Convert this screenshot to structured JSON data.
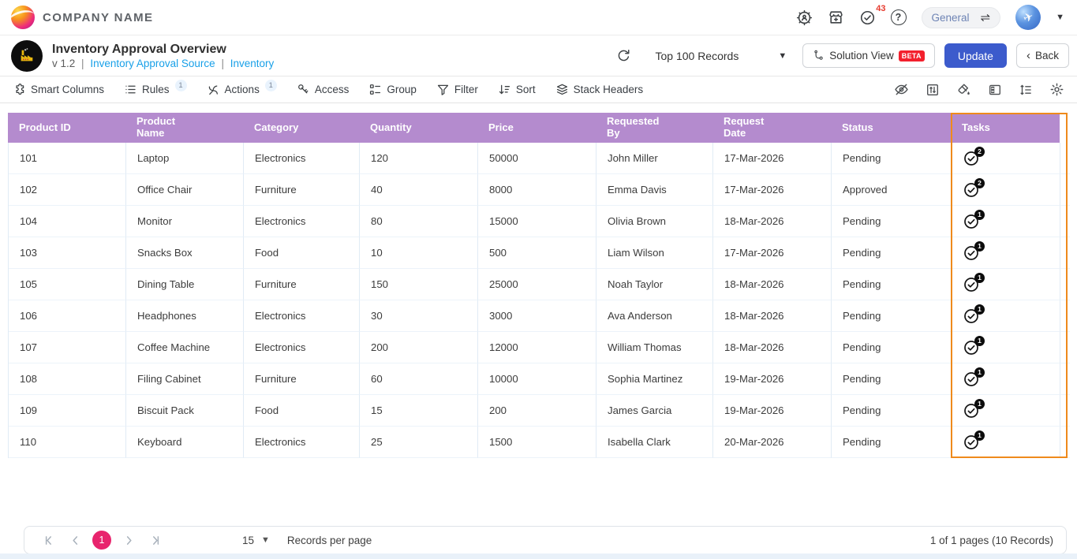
{
  "topbar": {
    "brand": "COMPANY NAME",
    "tasks_count": "43",
    "help_glyph": "?",
    "workspace_label": "General",
    "icons": [
      "admin-settings-icon",
      "marketplace-icon",
      "approvals-icon",
      "help-icon",
      "swap-environment-icon",
      "avatar",
      "caret-down-icon"
    ]
  },
  "view_header": {
    "title": "Inventory Approval Overview",
    "version": "v 1.2",
    "separator": "|",
    "source_link": "Inventory Approval Source",
    "app_link": "Inventory",
    "records_filter": "Top 100 Records",
    "solution_view_label": "Solution View",
    "beta_label": "BETA",
    "update_label": "Update",
    "back_label": "Back",
    "back_chevron": "‹",
    "accent_color": "#3c5bcc",
    "link_color": "#18a0e8"
  },
  "toolbar": {
    "items": [
      {
        "label": "Smart Columns",
        "icon": "puzzle-icon"
      },
      {
        "label": "Rules",
        "badge": "1",
        "icon": "list-icon"
      },
      {
        "label": "Actions",
        "badge": "1",
        "icon": "snap-icon"
      },
      {
        "label": "Access",
        "icon": "key-icon"
      },
      {
        "label": "Group",
        "icon": "group-icon"
      },
      {
        "label": "Filter",
        "icon": "funnel-icon"
      },
      {
        "label": "Sort",
        "icon": "sort-icon"
      },
      {
        "label": "Stack Headers",
        "icon": "layers-icon"
      }
    ],
    "right_icons": [
      "hide-fields-icon",
      "fit-rows-icon",
      "fill-color-icon",
      "freeze-panel-icon",
      "row-height-icon",
      "settings-icon"
    ]
  },
  "table": {
    "header_bg": "#b48bce",
    "highlight_border": "#ef8a1c",
    "columns": [
      "Product ID",
      "Product Name",
      "Category",
      "Quantity",
      "Price",
      "Requested By",
      "Request Date",
      "Status",
      "Tasks"
    ],
    "rows": [
      [
        "101",
        "Laptop",
        "Electronics",
        "120",
        "50000",
        "John Miller",
        "17-Mar-2026",
        "Pending",
        "2"
      ],
      [
        "102",
        "Office Chair",
        "Furniture",
        "40",
        "8000",
        "Emma Davis",
        "17-Mar-2026",
        "Approved",
        "2"
      ],
      [
        "104",
        "Monitor",
        "Electronics",
        "80",
        "15000",
        "Olivia Brown",
        "18-Mar-2026",
        "Pending",
        "1"
      ],
      [
        "103",
        "Snacks Box",
        "Food",
        "10",
        "500",
        "Liam Wilson",
        "17-Mar-2026",
        "Pending",
        "1"
      ],
      [
        "105",
        "Dining Table",
        "Furniture",
        "150",
        "25000",
        "Noah Taylor",
        "18-Mar-2026",
        "Pending",
        "1"
      ],
      [
        "106",
        "Headphones",
        "Electronics",
        "30",
        "3000",
        "Ava Anderson",
        "18-Mar-2026",
        "Pending",
        "1"
      ],
      [
        "107",
        "Coffee Machine",
        "Electronics",
        "200",
        "12000",
        "William Thomas",
        "18-Mar-2026",
        "Pending",
        "1"
      ],
      [
        "108",
        "Filing Cabinet",
        "Furniture",
        "60",
        "10000",
        "Sophia Martinez",
        "19-Mar-2026",
        "Pending",
        "1"
      ],
      [
        "109",
        "Biscuit Pack",
        "Food",
        "15",
        "200",
        "James Garcia",
        "19-Mar-2026",
        "Pending",
        "1"
      ],
      [
        "110",
        "Keyboard",
        "Electronics",
        "25",
        "1500",
        "Isabella Clark",
        "20-Mar-2026",
        "Pending",
        "1"
      ]
    ]
  },
  "pagination": {
    "current_page": "1",
    "page_size": "15",
    "records_per_page_label": "Records per page",
    "summary": "1 of 1 pages (10 Records)",
    "active_color": "#e8246d"
  }
}
